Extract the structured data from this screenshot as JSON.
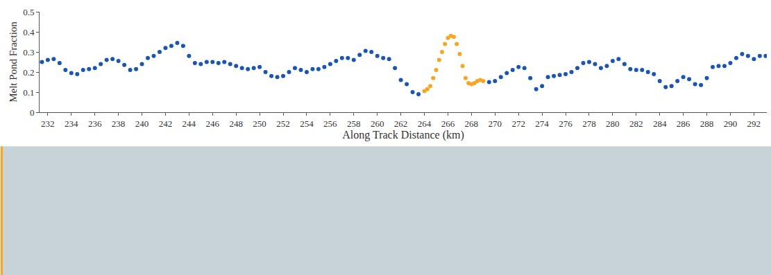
{
  "chart_data": {
    "type": "scatter",
    "x_label": "Along Track Distance (km)",
    "y_label": "Melt Pond Fraction",
    "xlim": [
      231.3,
      293.1
    ],
    "ylim": [
      0,
      0.5
    ],
    "xticks": [
      232,
      234,
      236,
      238,
      240,
      242,
      244,
      246,
      248,
      250,
      252,
      254,
      256,
      258,
      260,
      262,
      264,
      266,
      268,
      270,
      272,
      274,
      276,
      278,
      280,
      282,
      284,
      286,
      288,
      290,
      292
    ],
    "yticks": [
      0,
      0.1,
      0.2,
      0.3,
      0.4,
      0.5
    ],
    "grid": false,
    "marker": "circle",
    "series": [
      {
        "color": "#1a56b0",
        "x": [
          231.5,
          232,
          232.5,
          233,
          233.5,
          234,
          234.5,
          235,
          235.5,
          236,
          236.5,
          237,
          237.5,
          238,
          238.5,
          239,
          239.5,
          240,
          240.5,
          241,
          241.5,
          242,
          242.5,
          243,
          243.5,
          244,
          244.5,
          245,
          245.5,
          246,
          246.5,
          247,
          247.5,
          248,
          248.5,
          249,
          249.5,
          250,
          250.5,
          251,
          251.5,
          252,
          252.5,
          253,
          253.5,
          254,
          254.5,
          255,
          255.5,
          256,
          256.5,
          257,
          257.5,
          258,
          258.5,
          259,
          259.5,
          260,
          260.5,
          261,
          261.5,
          262,
          262.5,
          263,
          263.5
        ],
        "values": [
          0.25,
          0.26,
          0.265,
          0.245,
          0.21,
          0.195,
          0.19,
          0.21,
          0.215,
          0.22,
          0.24,
          0.26,
          0.265,
          0.255,
          0.235,
          0.21,
          0.215,
          0.24,
          0.27,
          0.28,
          0.3,
          0.32,
          0.33,
          0.345,
          0.33,
          0.28,
          0.245,
          0.24,
          0.25,
          0.25,
          0.245,
          0.25,
          0.24,
          0.23,
          0.22,
          0.215,
          0.22,
          0.225,
          0.2,
          0.18,
          0.175,
          0.18,
          0.2,
          0.22,
          0.21,
          0.2,
          0.215,
          0.215,
          0.225,
          0.24,
          0.255,
          0.27,
          0.27,
          0.26,
          0.285,
          0.305,
          0.3,
          0.28,
          0.27,
          0.265,
          0.22,
          0.16,
          0.14,
          0.1,
          0.09
        ]
      },
      {
        "color": "#f5a623",
        "x": [
          264,
          264.25,
          264.5,
          264.75,
          265,
          265.25,
          265.5,
          265.75,
          266,
          266.25,
          266.5,
          266.75,
          267,
          267.25,
          267.5,
          267.75,
          268,
          268.25,
          268.5,
          268.75,
          269
        ],
        "values": [
          0.105,
          0.115,
          0.13,
          0.17,
          0.21,
          0.26,
          0.3,
          0.34,
          0.37,
          0.38,
          0.375,
          0.34,
          0.29,
          0.23,
          0.17,
          0.145,
          0.14,
          0.145,
          0.155,
          0.16,
          0.155
        ]
      },
      {
        "color": "#1a56b0",
        "x": [
          269.5,
          270,
          270.5,
          271,
          271.5,
          272,
          272.5,
          273,
          273.5,
          274,
          274.5,
          275,
          275.5,
          276,
          276.5,
          277,
          277.5,
          278,
          278.5,
          279,
          279.5,
          280,
          280.5,
          281,
          281.5,
          282,
          282.5,
          283,
          283.5,
          284,
          284.5,
          285,
          285.5,
          286,
          286.5,
          287,
          287.5,
          288,
          288.5,
          289,
          289.5,
          290,
          290.5,
          291,
          291.5,
          292,
          292.5,
          293
        ],
        "values": [
          0.15,
          0.155,
          0.175,
          0.195,
          0.21,
          0.225,
          0.22,
          0.17,
          0.115,
          0.13,
          0.175,
          0.18,
          0.185,
          0.19,
          0.2,
          0.22,
          0.245,
          0.25,
          0.24,
          0.22,
          0.23,
          0.255,
          0.265,
          0.24,
          0.215,
          0.21,
          0.21,
          0.2,
          0.19,
          0.155,
          0.125,
          0.13,
          0.155,
          0.175,
          0.165,
          0.14,
          0.135,
          0.17,
          0.225,
          0.23,
          0.23,
          0.245,
          0.27,
          0.29,
          0.28,
          0.265,
          0.28,
          0.28
        ]
      }
    ]
  }
}
